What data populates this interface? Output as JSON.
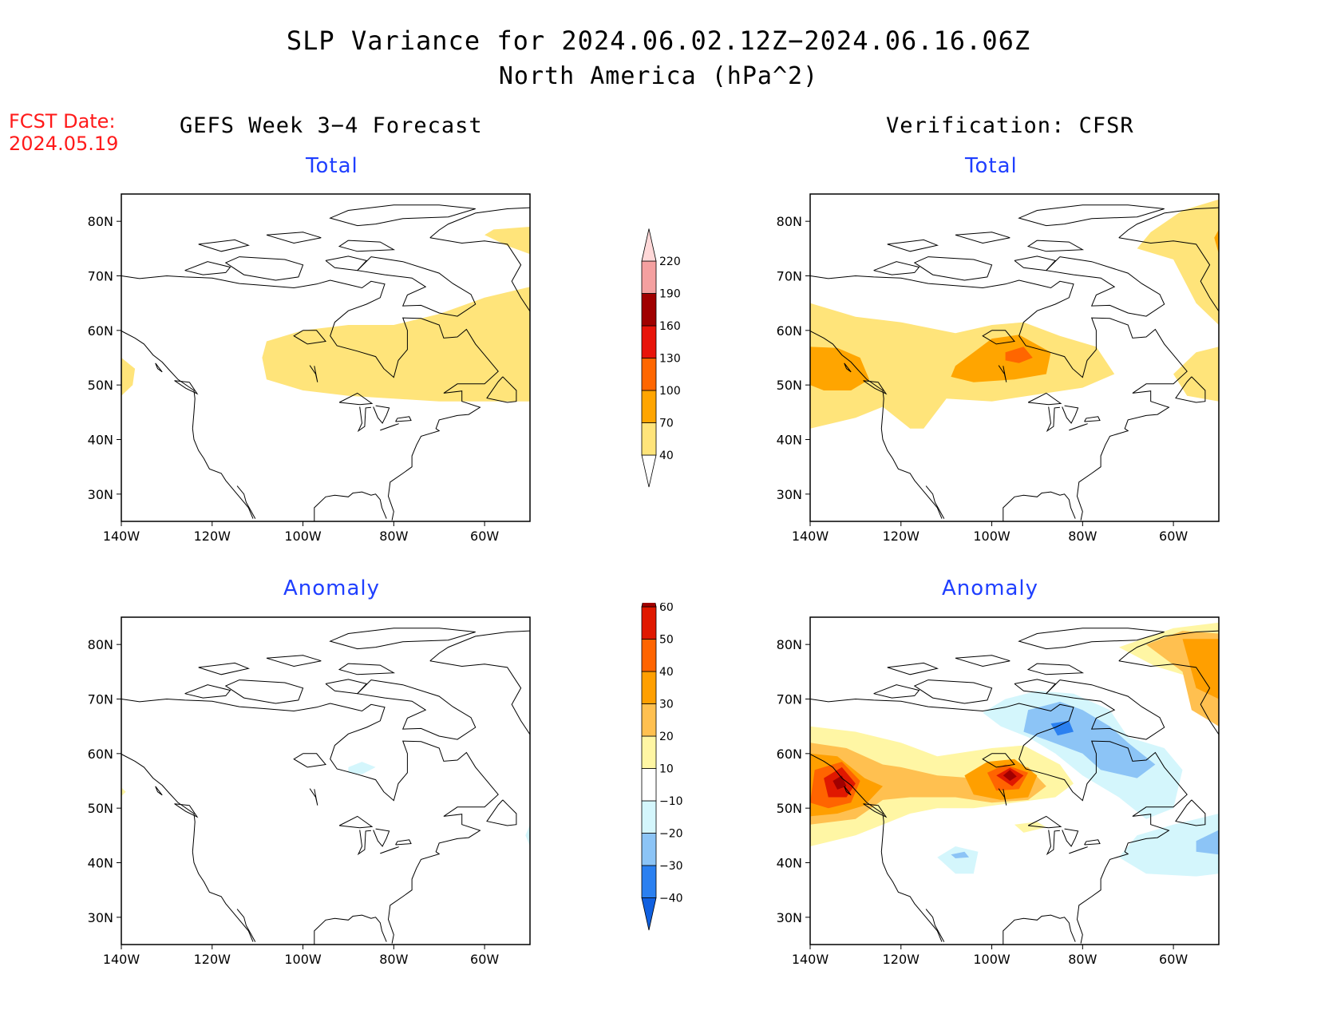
{
  "title": {
    "line1": "SLP Variance for 2024.06.02.12Z−2024.06.16.06Z",
    "line2": "North America (hPa^2)"
  },
  "fcst_date": {
    "label": "FCST Date:",
    "value": "2024.05.19"
  },
  "columns": {
    "left": "GEFS Week 3−4 Forecast",
    "right": "Verification: CFSR"
  },
  "panels": {
    "top_left": "Total",
    "top_right": "Total",
    "bottom_left": "Anomaly",
    "bottom_right": "Anomaly"
  },
  "axes": {
    "lat_ticks": [
      "80N",
      "70N",
      "60N",
      "50N",
      "40N",
      "30N"
    ],
    "lon_ticks": [
      "140W",
      "120W",
      "100W",
      "80W",
      "60W"
    ],
    "lat_values": [
      80,
      70,
      60,
      50,
      40,
      30
    ],
    "lon_values": [
      -140,
      -120,
      -100,
      -80,
      -60
    ],
    "lon_range": [
      -140,
      -50
    ],
    "lat_range": [
      25,
      85
    ]
  },
  "colorbar_total": {
    "levels": [
      "40",
      "70",
      "100",
      "130",
      "160",
      "190",
      "220"
    ],
    "colors": [
      "#ffe47a",
      "#ffa500",
      "#ff6600",
      "#e8140a",
      "#a00000",
      "#f4a0a0",
      "#ffd8d8"
    ],
    "below_color": "#ffffff"
  },
  "colorbar_anomaly": {
    "levels": [
      "−40",
      "−30",
      "−20",
      "−10",
      "10",
      "20",
      "30",
      "40",
      "50",
      "60"
    ],
    "colors": [
      "#1060e0",
      "#2b80f0",
      "#8cc4f6",
      "#d4f6fc",
      "#ffffff",
      "#fff6a4",
      "#ffc050",
      "#ff9f00",
      "#ff6400",
      "#e01800",
      "#a00000"
    ]
  }
}
